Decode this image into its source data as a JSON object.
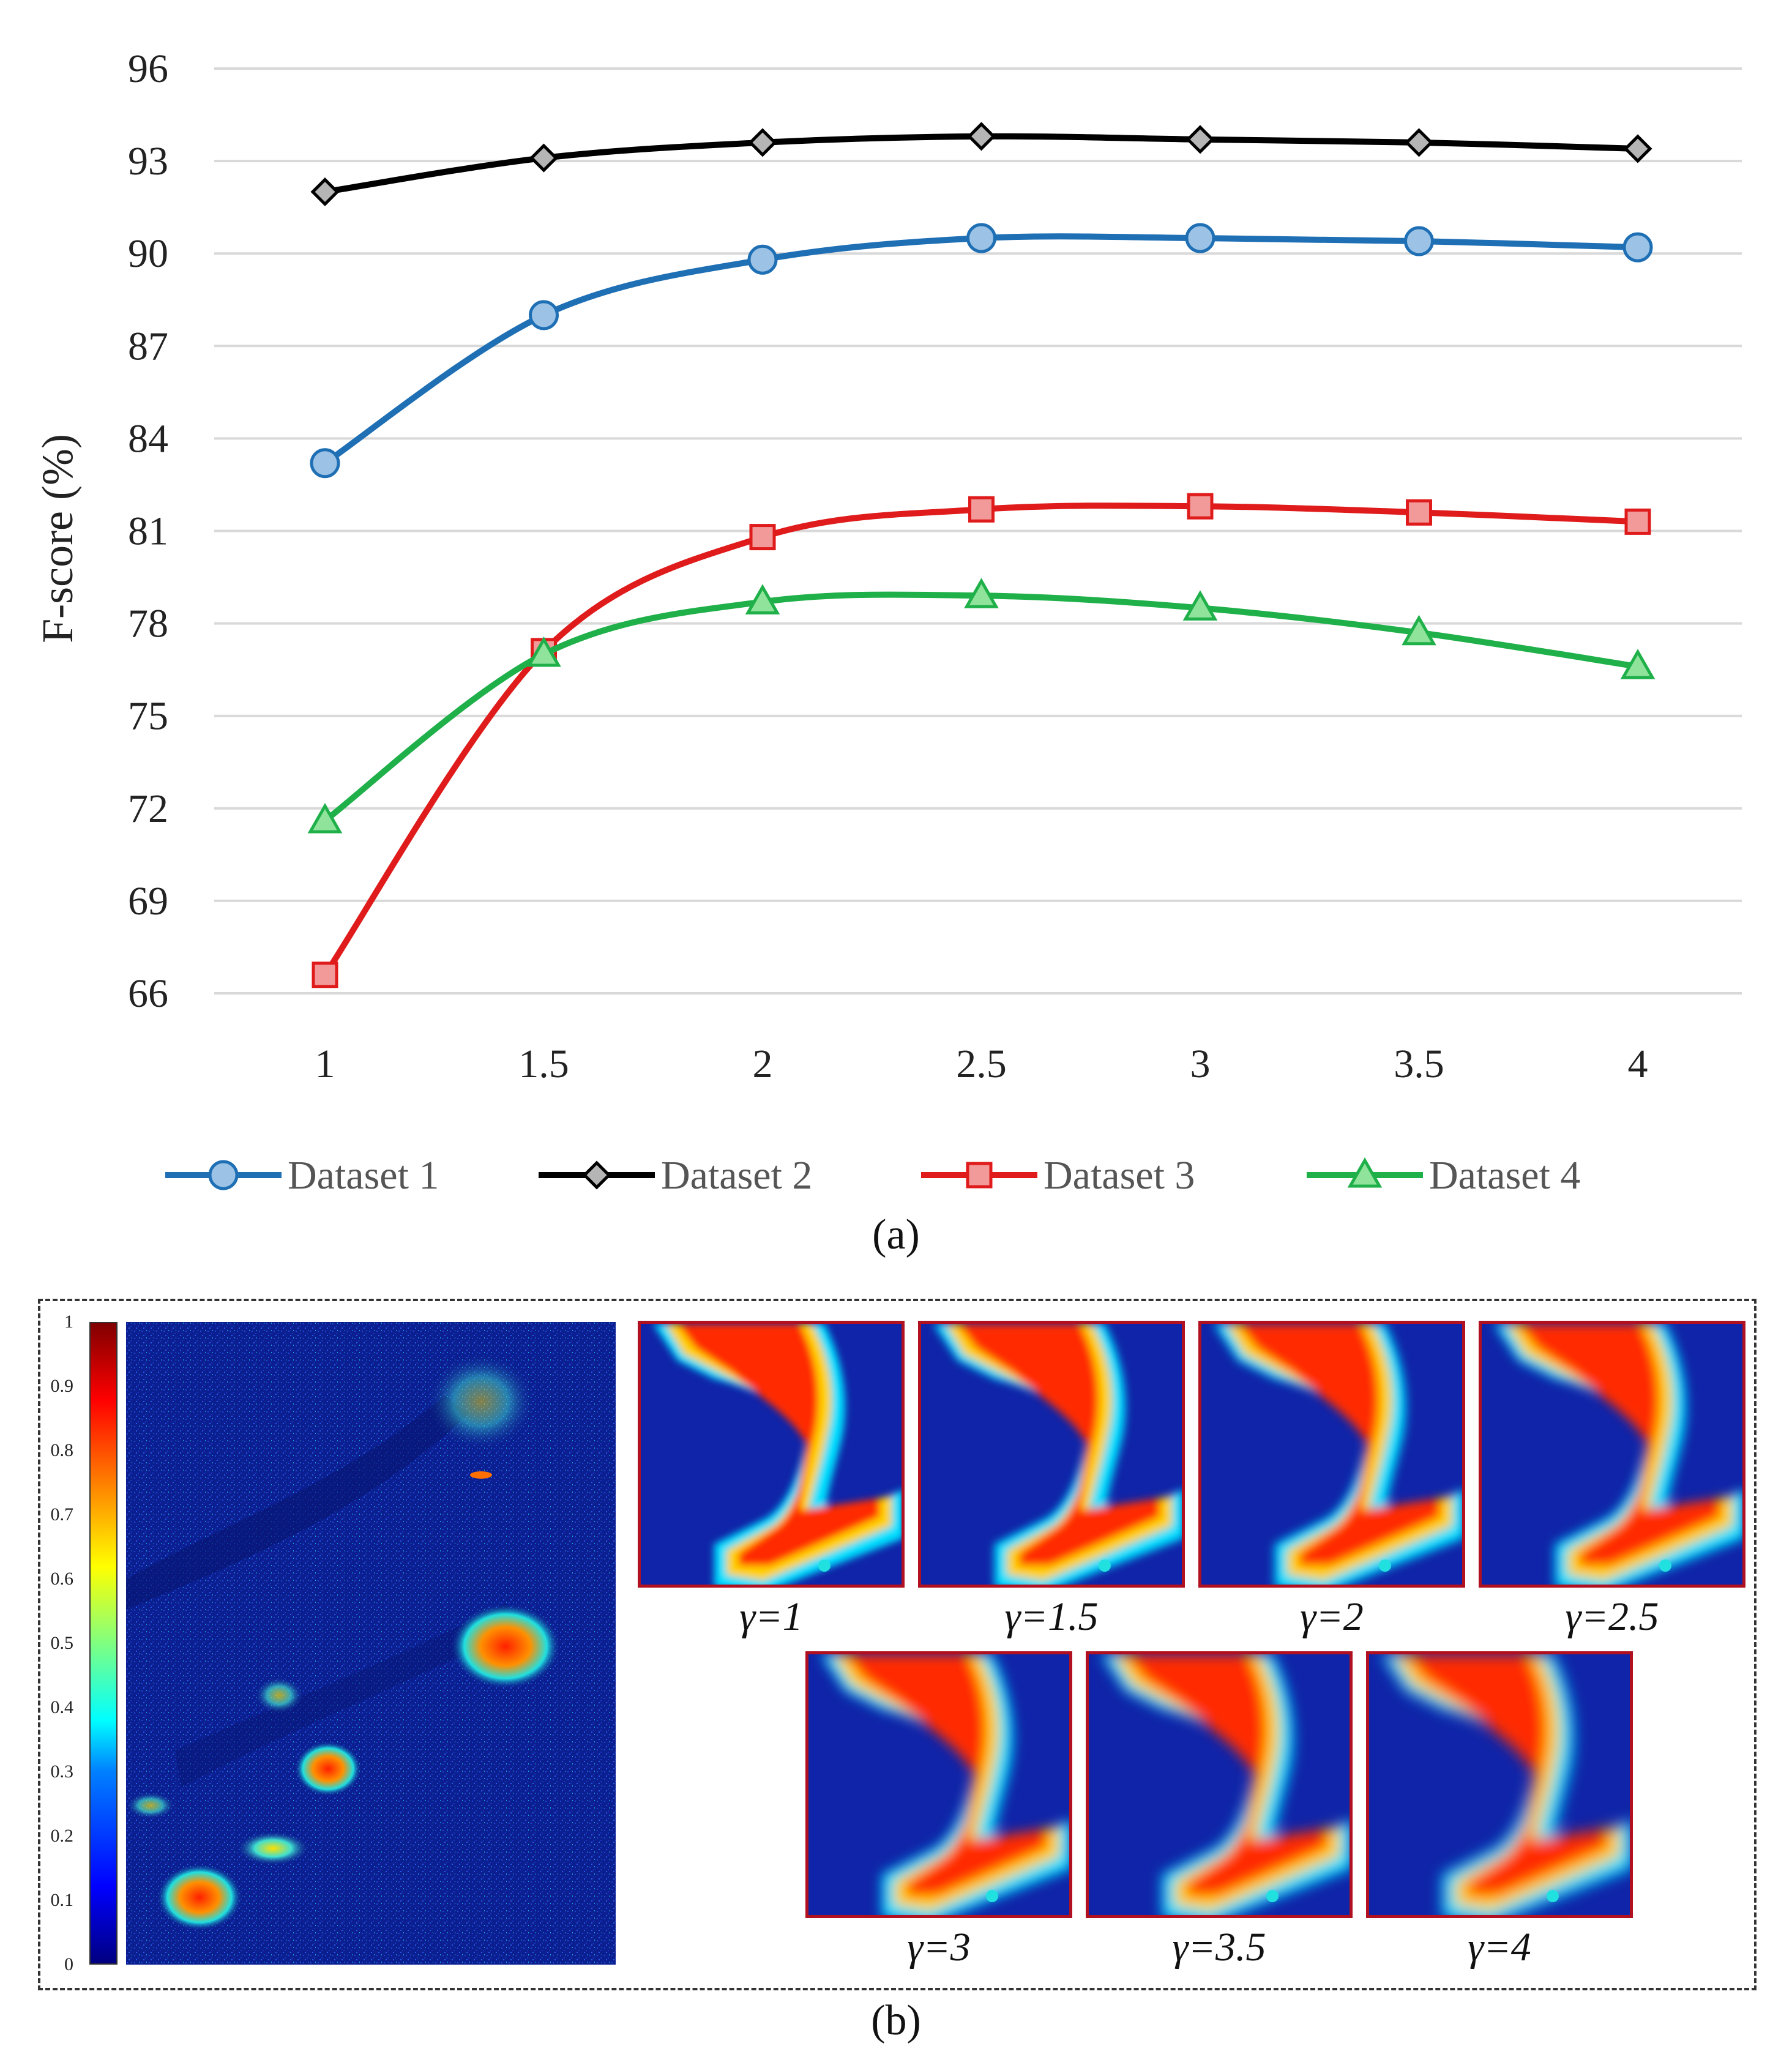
{
  "chart_data": {
    "type": "line",
    "title": "",
    "xlabel": "",
    "ylabel": "F-score (%)",
    "x": [
      "1",
      "1.5",
      "2",
      "2.5",
      "3",
      "3.5",
      "4"
    ],
    "y_ticks": [
      "66",
      "69",
      "72",
      "75",
      "78",
      "81",
      "84",
      "87",
      "90",
      "93",
      "96"
    ],
    "ylim": [
      66,
      96
    ],
    "grid": true,
    "legend_position": "bottom",
    "series": [
      {
        "name": "Dataset 1",
        "color": "#1f6fb5",
        "fill": "#9cc3e6",
        "marker": "circle",
        "values": [
          83.2,
          88.0,
          89.8,
          90.5,
          90.5,
          90.4,
          90.2
        ]
      },
      {
        "name": "Dataset 2",
        "color": "#000000",
        "fill": "#b5b5b5",
        "marker": "diamond",
        "values": [
          92.0,
          93.1,
          93.6,
          93.8,
          93.7,
          93.6,
          93.4
        ]
      },
      {
        "name": "Dataset 3",
        "color": "#e01b1b",
        "fill": "#f29a9a",
        "marker": "square",
        "values": [
          66.6,
          77.1,
          80.8,
          81.7,
          81.8,
          81.6,
          81.3
        ]
      },
      {
        "name": "Dataset 4",
        "color": "#1fb04a",
        "fill": "#8fe39b",
        "marker": "triangle",
        "values": [
          71.6,
          77.0,
          78.7,
          78.9,
          78.5,
          77.7,
          76.6
        ]
      }
    ]
  },
  "captions": {
    "a": "(a)",
    "b": "(b)"
  },
  "colorbar": {
    "labels": [
      "1",
      "0.9",
      "0.8",
      "0.7",
      "0.6",
      "0.5",
      "0.4",
      "0.3",
      "0.2",
      "0.1",
      "0"
    ],
    "colors": {
      "low": "#000080",
      "high": "#800000"
    }
  },
  "thumbnails": [
    {
      "gamma": "γ=1"
    },
    {
      "gamma": "γ=1.5"
    },
    {
      "gamma": "γ=2"
    },
    {
      "gamma": "γ=2.5"
    },
    {
      "gamma": "γ=3"
    },
    {
      "gamma": "γ=3.5"
    },
    {
      "gamma": "γ=4"
    }
  ]
}
